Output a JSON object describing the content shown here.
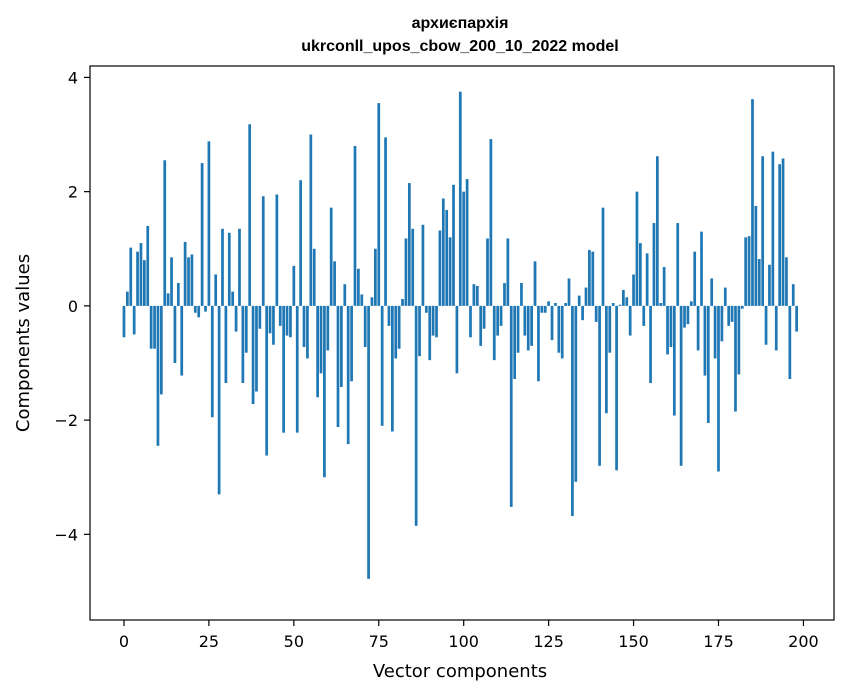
{
  "chart_data": {
    "type": "bar",
    "title": "архиєпархія",
    "subtitle": "ukrconll_upos_cbow_200_10_2022 model",
    "xlabel": "Vector components",
    "ylabel": "Components values",
    "xlim": [
      -10,
      209
    ],
    "ylim": [
      -5.5,
      4.2
    ],
    "xticks": [
      0,
      25,
      50,
      75,
      100,
      125,
      150,
      175,
      200
    ],
    "yticks": [
      -4,
      -2,
      0,
      2,
      4
    ],
    "ytick_labels": [
      "−4",
      "−2",
      "0",
      "2",
      "4"
    ],
    "bar_color": "#1f77b4",
    "grid": false,
    "values": [
      -0.55,
      0.25,
      1.02,
      -0.5,
      0.95,
      1.1,
      0.8,
      1.4,
      -0.75,
      -0.75,
      -2.45,
      -1.55,
      2.55,
      0.22,
      0.85,
      -1.0,
      0.4,
      -1.22,
      1.12,
      0.85,
      0.9,
      -0.12,
      -0.2,
      2.5,
      -0.1,
      2.88,
      -1.95,
      0.55,
      -3.3,
      1.35,
      -1.35,
      1.28,
      0.25,
      -0.45,
      1.35,
      -1.35,
      -0.82,
      3.18,
      -1.72,
      -1.5,
      -0.4,
      1.92,
      -2.62,
      -0.48,
      -0.68,
      1.95,
      -0.35,
      -2.22,
      -0.52,
      -0.55,
      0.7,
      -2.22,
      2.2,
      -0.72,
      -0.92,
      3.0,
      1.0,
      -1.6,
      -1.18,
      -3.0,
      -0.78,
      1.72,
      0.78,
      -2.12,
      -1.42,
      0.38,
      -2.42,
      -1.32,
      2.8,
      0.65,
      0.2,
      -0.72,
      -4.78,
      0.15,
      1.0,
      3.55,
      -2.1,
      2.95,
      -0.35,
      -2.2,
      -0.92,
      -0.75,
      0.12,
      1.18,
      2.15,
      1.35,
      -3.85,
      -0.88,
      1.42,
      -0.12,
      -0.95,
      -0.52,
      -0.55,
      1.32,
      1.88,
      1.68,
      1.2,
      2.12,
      -1.18,
      3.75,
      2.0,
      2.22,
      -0.55,
      0.38,
      0.35,
      -0.7,
      -0.4,
      1.18,
      2.92,
      -0.95,
      -0.52,
      -0.35,
      0.4,
      1.18,
      -3.52,
      -1.28,
      -0.82,
      0.4,
      -0.52,
      -0.78,
      -0.7,
      0.78,
      -1.32,
      -0.12,
      -0.12,
      0.08,
      -0.6,
      0.05,
      -0.82,
      -0.92,
      0.05,
      0.48,
      -3.68,
      -3.08,
      0.18,
      -0.25,
      0.32,
      0.98,
      0.95,
      -0.28,
      -2.8,
      1.72,
      -1.88,
      -0.82,
      0.05,
      -2.88,
      0.02,
      0.28,
      0.15,
      -0.52,
      0.55,
      2.0,
      1.1,
      -0.35,
      0.92,
      -1.35,
      1.45,
      2.62,
      0.05,
      0.68,
      -0.85,
      -0.72,
      -1.92,
      1.45,
      -2.8,
      -0.38,
      -0.32,
      0.08,
      0.95,
      -0.78,
      1.3,
      -1.22,
      -2.05,
      0.48,
      -0.92,
      -2.9,
      -0.62,
      0.32,
      -0.35,
      -0.28,
      -1.85,
      -1.2,
      -0.05,
      1.2,
      1.22,
      3.62,
      1.75,
      0.82,
      2.62,
      -0.68,
      0.72,
      2.7,
      -0.78,
      2.48,
      2.58,
      0.85,
      -1.28,
      0.38,
      -0.45
    ]
  }
}
